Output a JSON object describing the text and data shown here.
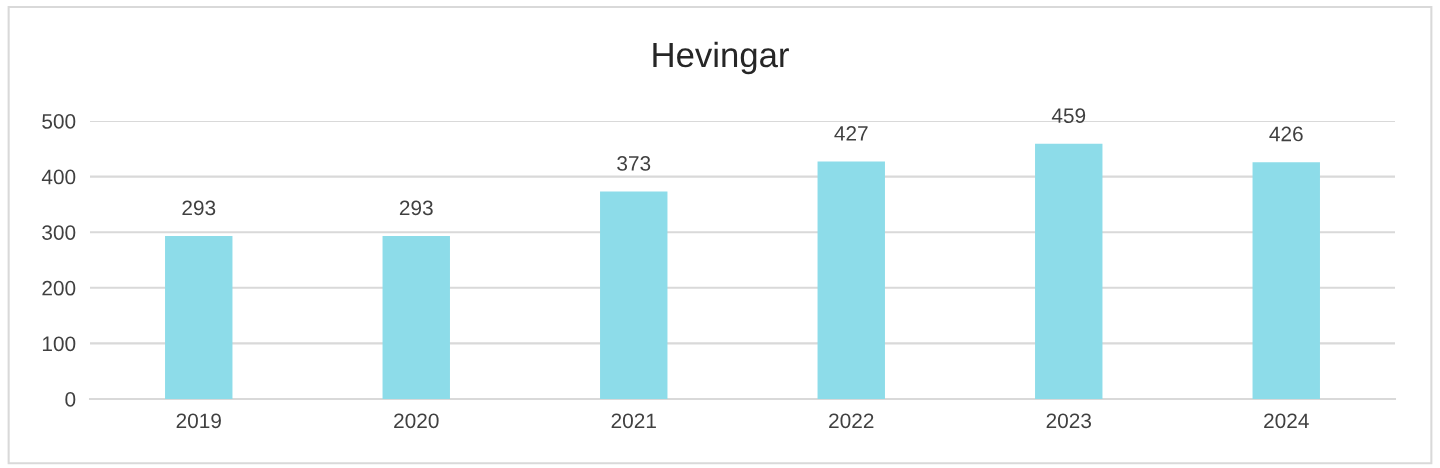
{
  "chart_data": {
    "type": "bar",
    "title": "Hevingar",
    "categories": [
      "2019",
      "2020",
      "2021",
      "2022",
      "2023",
      "2024"
    ],
    "values": [
      293,
      293,
      373,
      427,
      459,
      426
    ],
    "color": "#8ddce9",
    "ylim": [
      0,
      500
    ],
    "yticks": [
      0,
      100,
      200,
      300,
      400,
      500
    ],
    "grid": "y",
    "data_labels": true
  }
}
